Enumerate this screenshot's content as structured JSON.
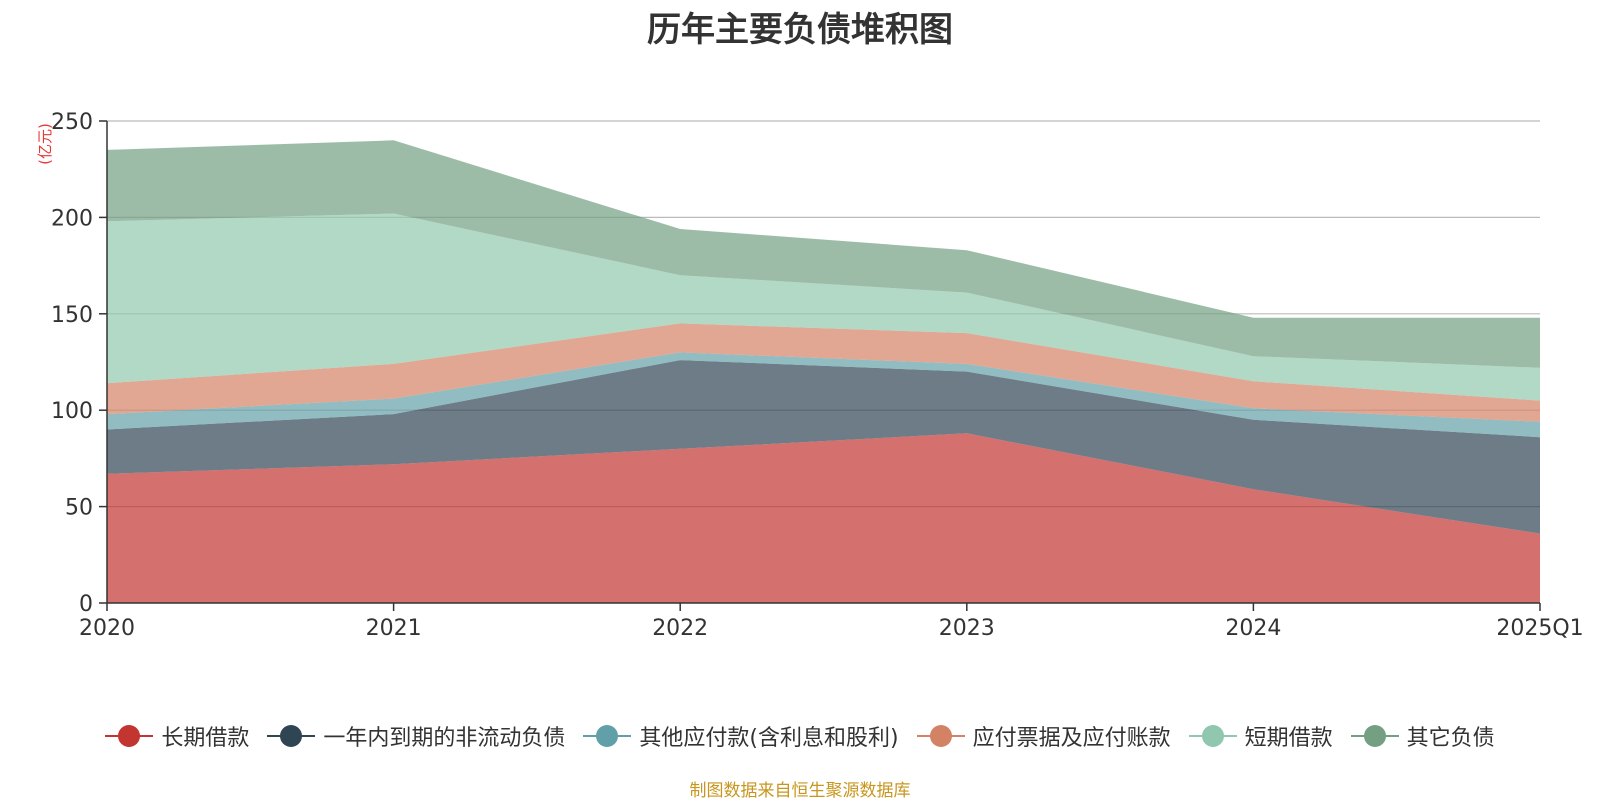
{
  "chart_data": {
    "type": "area",
    "stacked": true,
    "title": "历年主要负债堆积图",
    "ylabel": "(亿元)",
    "xlabel": "",
    "categories": [
      "2020",
      "2021",
      "2022",
      "2023",
      "2024",
      "2025Q1"
    ],
    "ylim": [
      0,
      250
    ],
    "yticks": [
      0,
      50,
      100,
      150,
      200,
      250
    ],
    "grid": true,
    "legend_position": "bottom",
    "series": [
      {
        "name": "长期借款",
        "color": "#c23531",
        "values": [
          67,
          72,
          80,
          88,
          59,
          36
        ]
      },
      {
        "name": "一年内到期的非流动负债",
        "color": "#2f4554",
        "values": [
          23,
          26,
          46,
          32,
          36,
          50
        ]
      },
      {
        "name": "其他应付款(含利息和股利)",
        "color": "#61a0a8",
        "values": [
          8,
          8,
          4,
          4,
          6,
          8
        ]
      },
      {
        "name": "应付票据及应付账款",
        "color": "#d48265",
        "values": [
          16,
          18,
          15,
          16,
          14,
          11
        ]
      },
      {
        "name": "短期借款",
        "color": "#91c7ae",
        "values": [
          84,
          78,
          25,
          21,
          13,
          17
        ]
      },
      {
        "name": "其它负债",
        "color": "#749f83",
        "values": [
          37,
          38,
          24,
          22,
          20,
          26
        ]
      }
    ]
  },
  "source_note": "制图数据来自恒生聚源数据库"
}
